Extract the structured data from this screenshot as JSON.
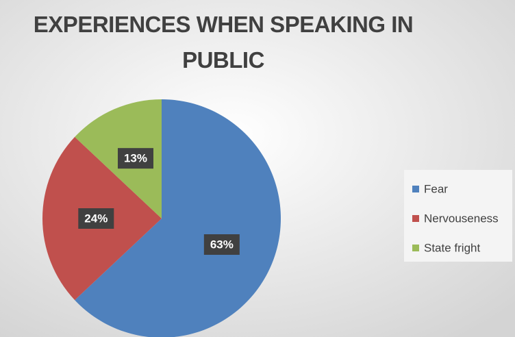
{
  "chart_data": {
    "type": "pie",
    "title": "EXPERIENCES WHEN SPEAKING IN PUBLIC",
    "categories": [
      "Fear",
      "Nervouseness",
      "State fright"
    ],
    "values": [
      63,
      24,
      13
    ],
    "value_labels": [
      "63%",
      "24%",
      "13%"
    ],
    "colors": [
      "#4f81bd",
      "#c0504d",
      "#9bbb59"
    ],
    "legend": "right"
  }
}
